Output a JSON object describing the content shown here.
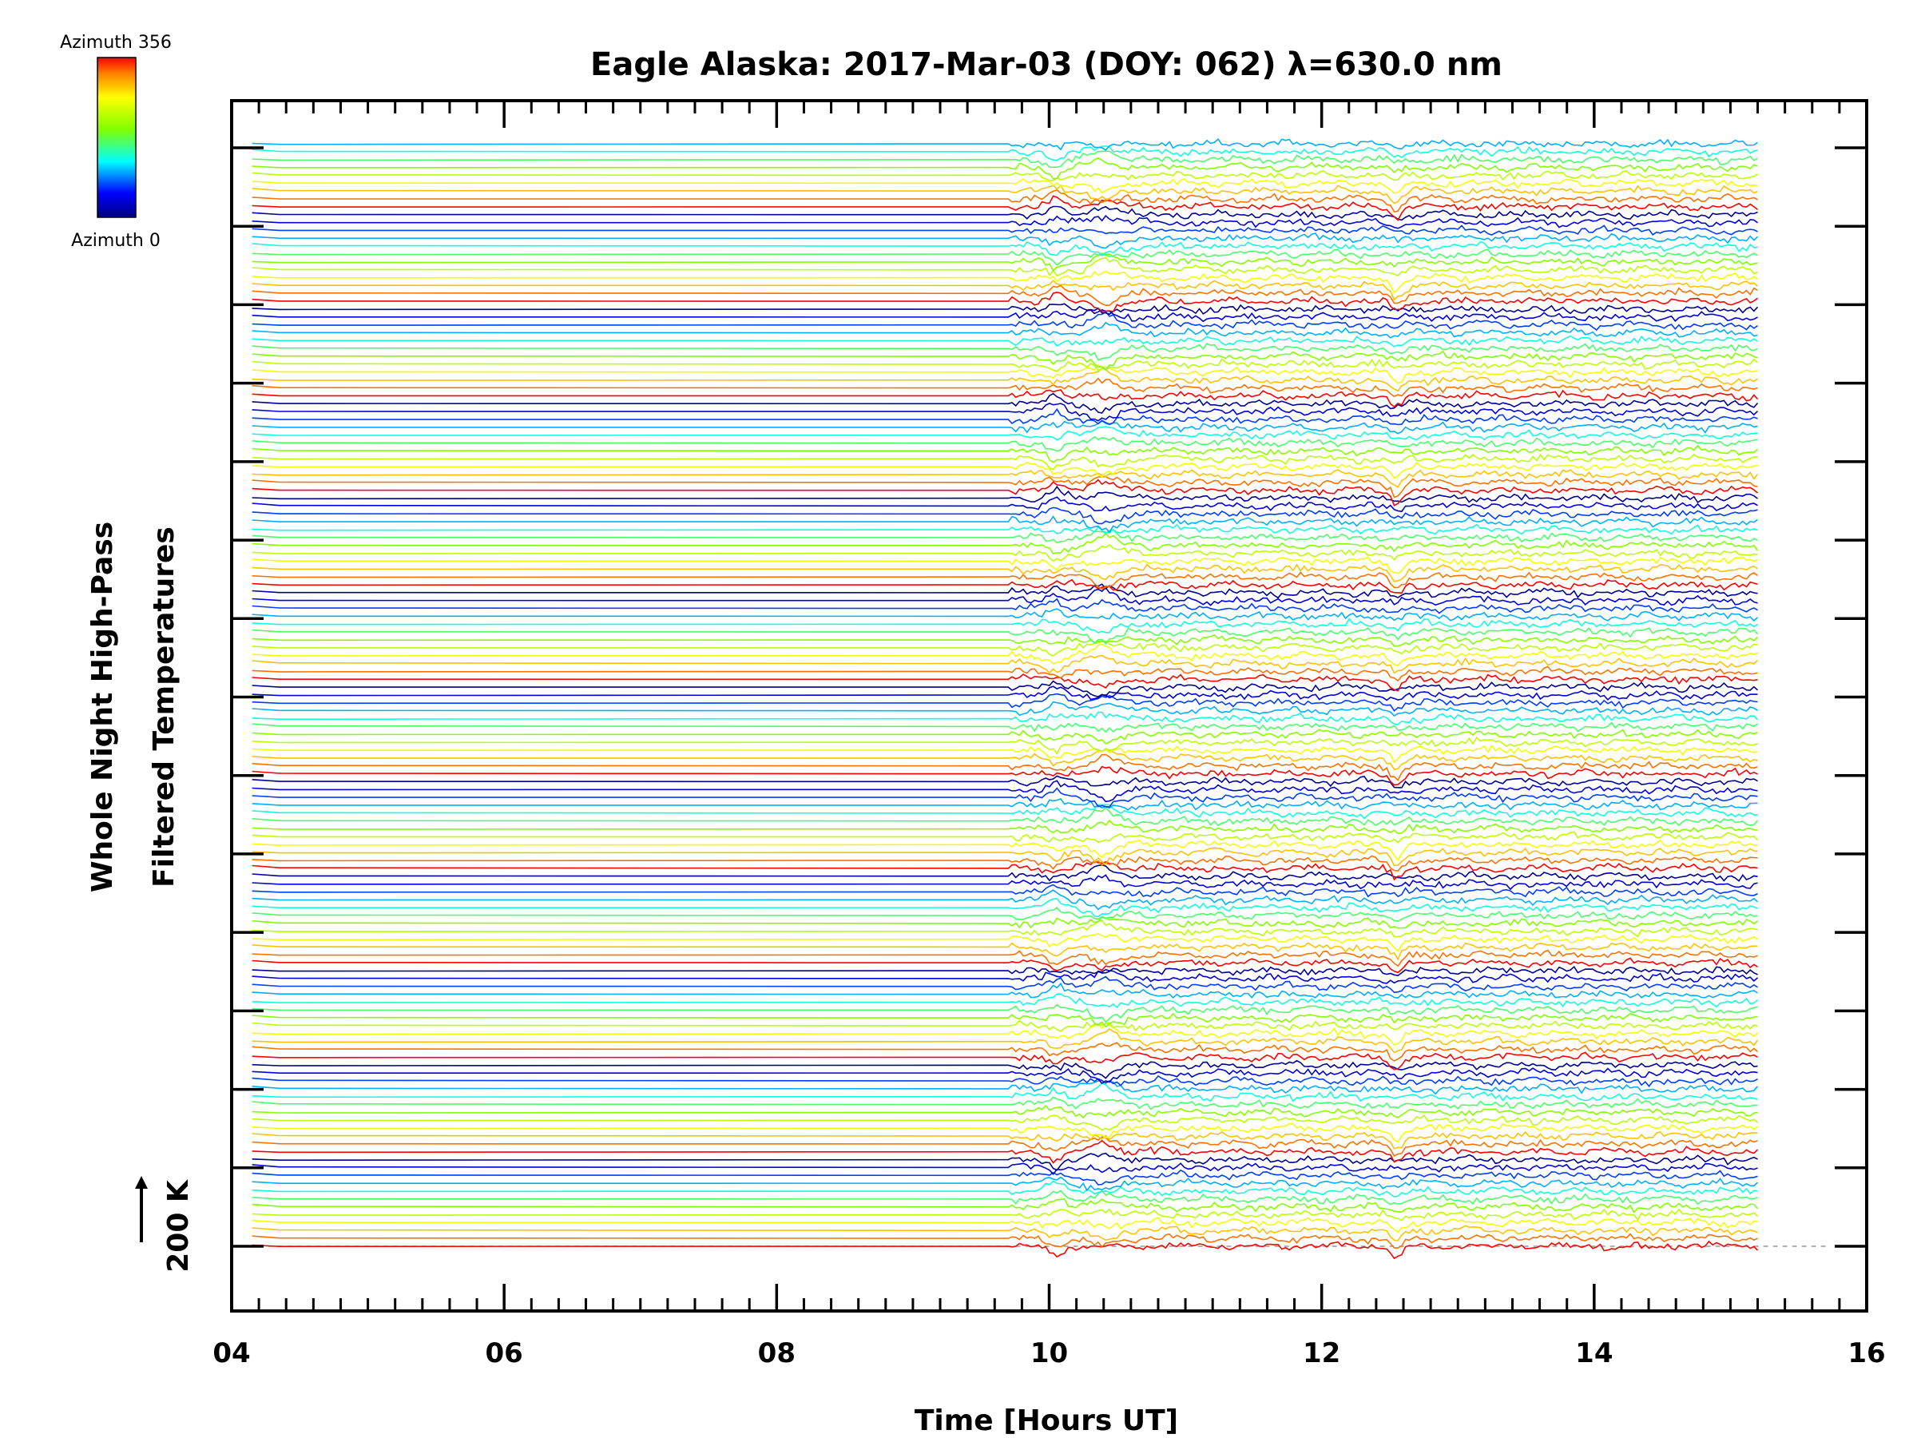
{
  "chart_data": {
    "type": "line",
    "title": "Eagle Alaska: 2017-Mar-03 (DOY: 062) λ=630.0 nm",
    "xlabel": "Time [Hours UT]",
    "ylabel_line1": "Whole Night High-Pass",
    "ylabel_line2": "Filtered Temperatures",
    "scale_label": "200 K",
    "xlim": [
      4,
      16
    ],
    "xticks": [
      "04",
      "06",
      "08",
      "10",
      "12",
      "14",
      "16"
    ],
    "x_start": 4.15,
    "x_end": 15.2,
    "data_gap": [
      4.35,
      9.7
    ],
    "series_count": 141,
    "colorbar": {
      "top_label": "Azimuth  356",
      "bottom_label": "Azimuth  0",
      "colormap": "rainbow"
    },
    "baseline_dashed": true,
    "grid": false,
    "legend": "none"
  }
}
